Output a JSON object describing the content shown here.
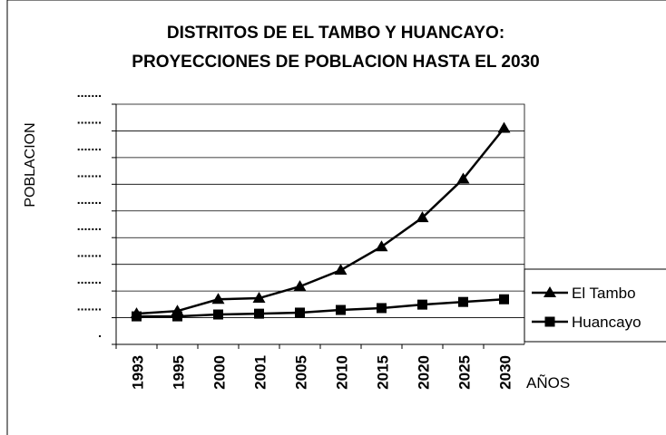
{
  "chart_data": {
    "type": "line",
    "title": [
      "DISTRITOS DE EL TAMBO Y HUANCAYO:",
      "PROYECCIONES DE POBLACION HASTA EL 2030"
    ],
    "y_label": "POBLACION",
    "x_label": "AÑOS",
    "categories": [
      "1993",
      "1995",
      "2000",
      "2001",
      "2005",
      "2010",
      "2015",
      "2020",
      "2025",
      "2030"
    ],
    "series": [
      {
        "name": "El Tambo",
        "color": "#000000",
        "marker": "triangle",
        "values": [
          1.15,
          1.25,
          1.69,
          1.73,
          2.17,
          2.78,
          3.66,
          4.75,
          6.2,
          8.1
        ]
      },
      {
        "name": "Huancayo",
        "color": "#000000",
        "marker": "square",
        "values": [
          1.05,
          1.05,
          1.12,
          1.15,
          1.19,
          1.29,
          1.36,
          1.49,
          1.59,
          1.69
        ]
      }
    ],
    "ylim": [
      0,
      9
    ],
    "yticks": [
      {
        "value": 0,
        "label": "."
      },
      {
        "value": 1,
        "label": "......."
      },
      {
        "value": 2,
        "label": "......."
      },
      {
        "value": 3,
        "label": "......."
      },
      {
        "value": 4,
        "label": "......."
      },
      {
        "value": 5,
        "label": "......."
      },
      {
        "value": 6,
        "label": "......."
      },
      {
        "value": 7,
        "label": "......."
      },
      {
        "value": 8,
        "label": "......."
      },
      {
        "value": 9,
        "label": "......."
      }
    ],
    "grid": true,
    "legend": "right"
  }
}
